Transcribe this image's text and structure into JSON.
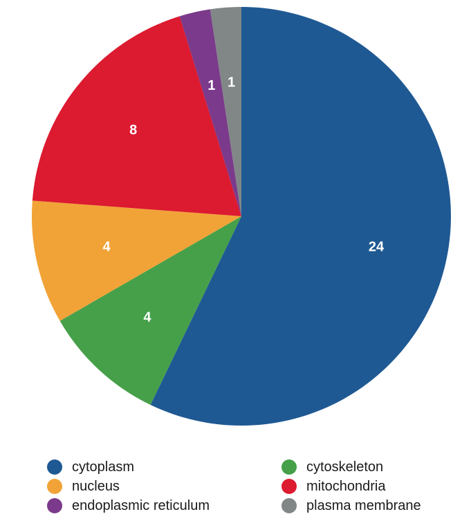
{
  "chart_data": {
    "type": "pie",
    "title": "",
    "start_angle_deg": 0,
    "direction": "clockwise",
    "slices": [
      {
        "label": "cytoplasm",
        "value": 24,
        "color": "#1f5993"
      },
      {
        "label": "cytoskeleton",
        "value": 4,
        "color": "#46a04a"
      },
      {
        "label": "nucleus",
        "value": 4,
        "color": "#f1a338"
      },
      {
        "label": "mitochondria",
        "value": 8,
        "color": "#dc1a30"
      },
      {
        "label": "endoplasmic reticulum",
        "value": 1,
        "color": "#7b3a8b"
      },
      {
        "label": "plasma membrane",
        "value": 1,
        "color": "#818787"
      }
    ],
    "legend": {
      "placement": "bottom",
      "columns": [
        [
          "cytoplasm",
          "nucleus",
          "endoplasmic reticulum"
        ],
        [
          "cytoskeleton",
          "mitochondria",
          "plasma membrane"
        ]
      ]
    }
  }
}
